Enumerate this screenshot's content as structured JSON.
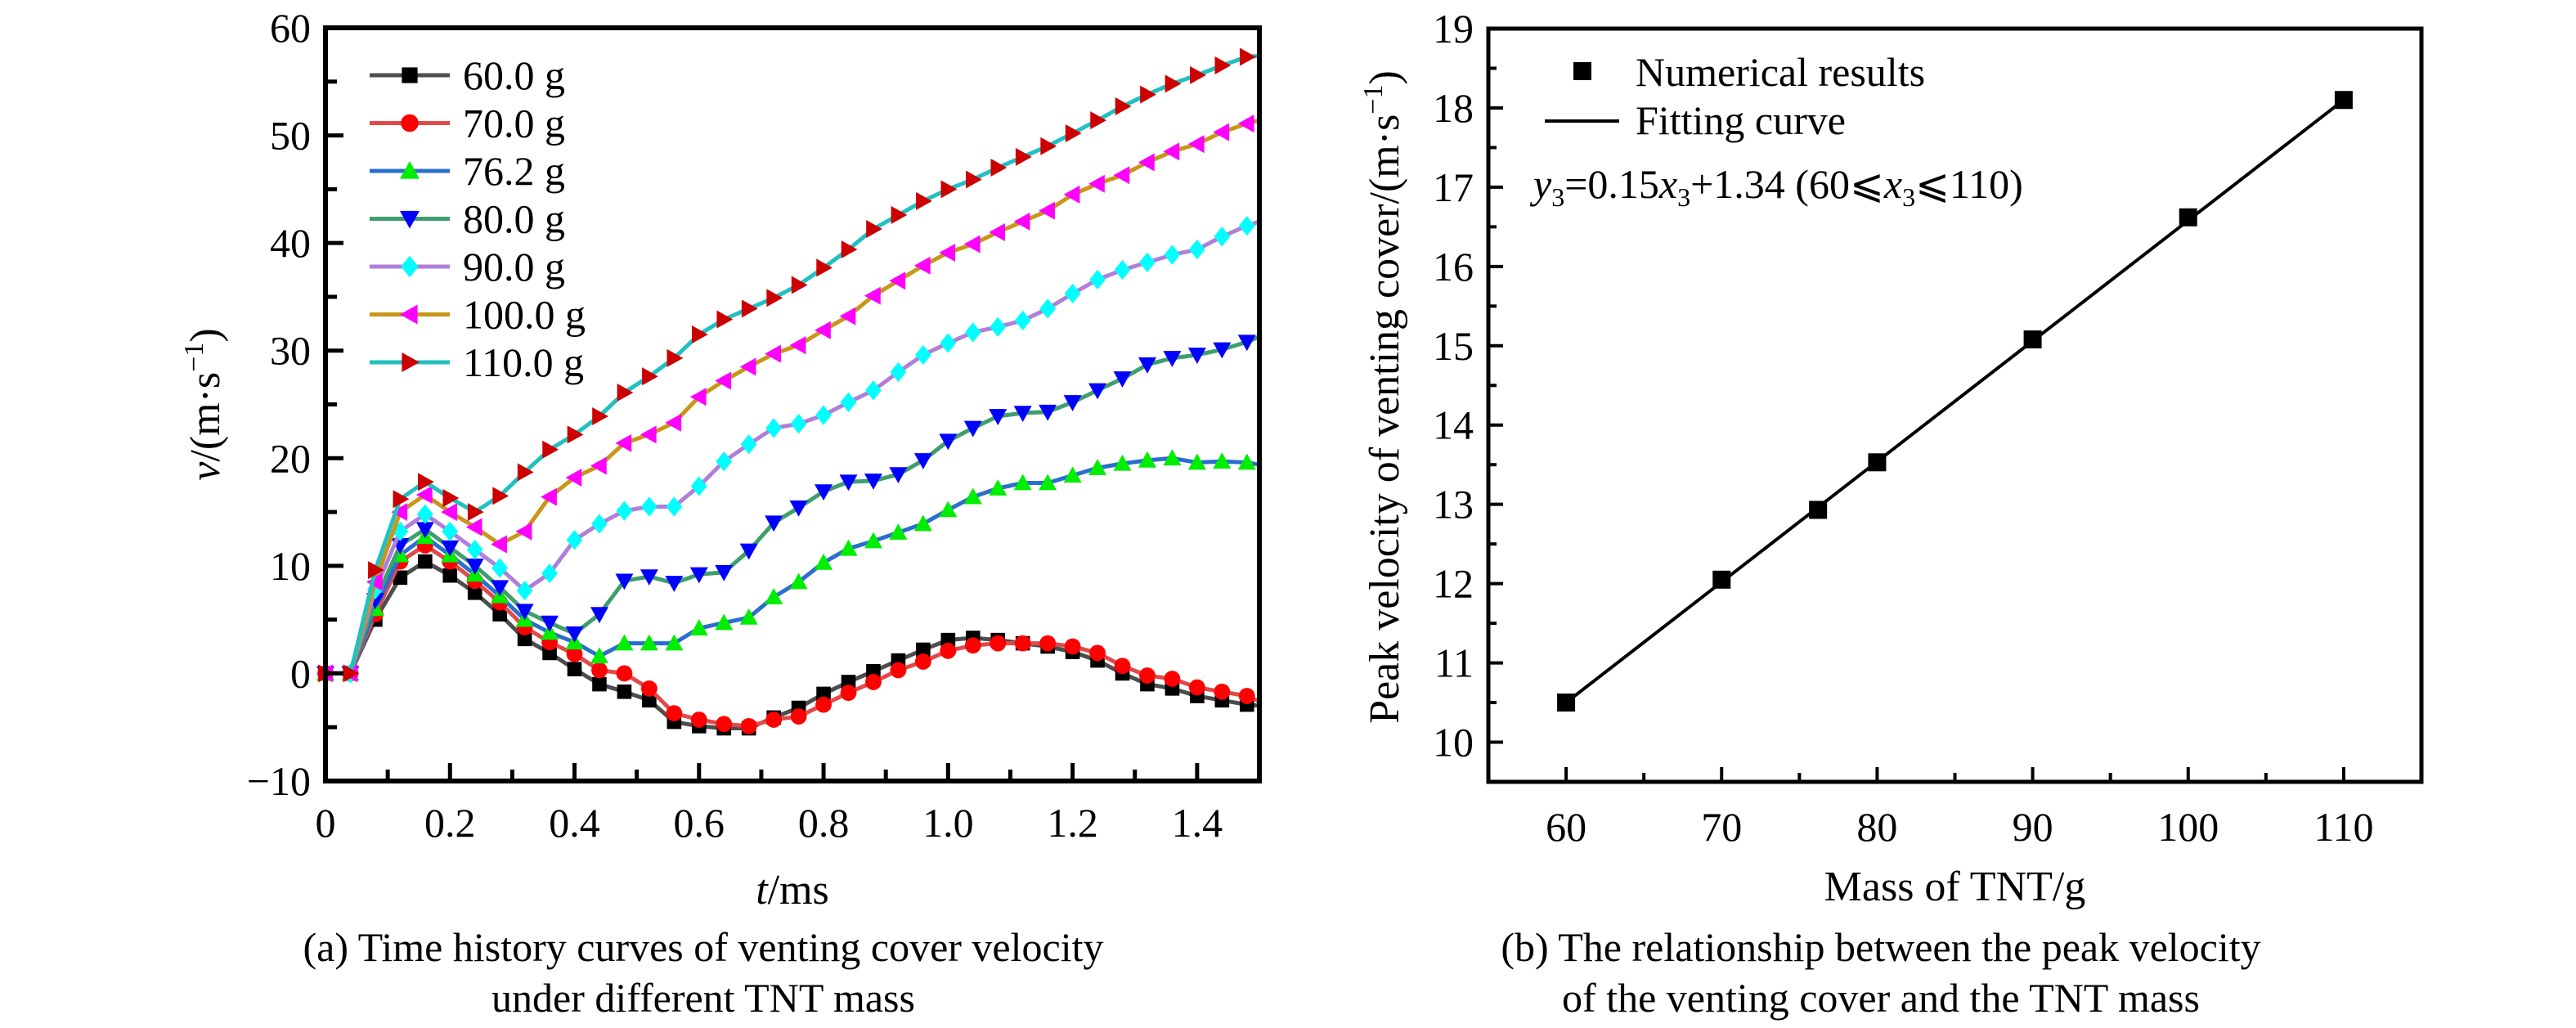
{
  "chart_data": [
    {
      "id": "a",
      "type": "line",
      "title": "",
      "caption_lines": [
        "(a) Time history curves of venting cover velocity",
        "under different TNT mass"
      ],
      "xlabel_italic": "t",
      "xlabel_rest": "/ms",
      "ylabel_italic": "v",
      "ylabel_rest": "/(m·s",
      "ylabel_sup": "−1",
      "ylabel_close": ")",
      "xlim": [
        0,
        1.5
      ],
      "ylim": [
        -10,
        60
      ],
      "xticks": [
        0,
        0.2,
        0.4,
        0.6,
        0.8,
        1.0,
        1.2,
        1.4
      ],
      "xtick_labels": [
        "0",
        "0.2",
        "0.4",
        "0.6",
        "0.8",
        "1.0",
        "1.2",
        "1.4"
      ],
      "yticks": [
        -10,
        0,
        10,
        20,
        30,
        40,
        50,
        60
      ],
      "ytick_labels": [
        "−10",
        "0",
        "10",
        "20",
        "30",
        "40",
        "50",
        "60"
      ],
      "grid": false,
      "legend_position": "top-left",
      "x_start": 0,
      "x_step": 0.04,
      "series": [
        {
          "name": "60.0 g",
          "line_color": "#4d4d4d",
          "marker": "square",
          "marker_color": "#000000",
          "values": [
            0,
            0,
            5.0,
            8.9,
            10.4,
            9.1,
            7.5,
            5.5,
            3.2,
            1.9,
            0.4,
            -1.0,
            -1.7,
            -2.5,
            -4.5,
            -4.9,
            -5.1,
            -5.1,
            -4.1,
            -3.2,
            -1.9,
            -0.8,
            0.2,
            1.2,
            2.2,
            3.1,
            3.3,
            3.1,
            2.8,
            2.5,
            2.0,
            1.2,
            0.0,
            -1.0,
            -1.4,
            -2.1,
            -2.5,
            -2.9
          ],
          "end_value": -3.0
        },
        {
          "name": "70.0 g",
          "line_color": "#e04a4a",
          "marker": "circle",
          "marker_color": "#ff0000",
          "values": [
            0,
            0,
            5.5,
            10.4,
            11.9,
            10.4,
            8.6,
            6.6,
            4.3,
            2.9,
            1.8,
            0.3,
            0.0,
            -1.4,
            -3.7,
            -4.3,
            -4.7,
            -4.9,
            -4.3,
            -4.0,
            -2.9,
            -1.8,
            -0.8,
            0.3,
            1.1,
            2.1,
            2.6,
            2.8,
            2.8,
            2.8,
            2.5,
            1.9,
            0.7,
            -0.2,
            -0.5,
            -1.3,
            -1.7,
            -2.1
          ],
          "end_value": -2.6
        },
        {
          "name": "76.2 g",
          "line_color": "#2a6fcf",
          "marker": "triangle-up",
          "marker_color": "#00ee00",
          "values": [
            0,
            0,
            6.0,
            11.0,
            12.7,
            11.0,
            9.2,
            7.2,
            5.0,
            3.8,
            2.9,
            1.6,
            2.8,
            2.8,
            2.8,
            4.2,
            4.7,
            5.2,
            7.1,
            8.5,
            10.3,
            11.6,
            12.3,
            13.1,
            13.9,
            15.2,
            16.4,
            17.2,
            17.7,
            17.7,
            18.4,
            19.1,
            19.5,
            19.8,
            20.0,
            19.6,
            19.7,
            19.6
          ],
          "end_value": 19.4
        },
        {
          "name": "80.0 g",
          "line_color": "#3f9e6e",
          "marker": "triangle-down",
          "marker_color": "#0000ff",
          "values": [
            0,
            0,
            6.8,
            11.9,
            13.4,
            11.7,
            10.0,
            8.0,
            5.8,
            4.7,
            3.7,
            5.5,
            8.6,
            9.0,
            8.4,
            9.2,
            9.4,
            11.4,
            14.0,
            15.4,
            16.9,
            17.8,
            17.9,
            18.5,
            19.8,
            21.6,
            22.8,
            23.9,
            24.2,
            24.3,
            25.2,
            26.3,
            27.4,
            28.7,
            29.3,
            29.6,
            30.1,
            30.8
          ],
          "end_value": 31.3
        },
        {
          "name": "90.0 g",
          "line_color": "#b07fd8",
          "marker": "diamond",
          "marker_color": "#00ffff",
          "values": [
            0,
            0,
            7.8,
            13.2,
            14.8,
            13.2,
            11.5,
            9.8,
            7.7,
            9.3,
            12.4,
            13.9,
            15.1,
            15.5,
            15.5,
            17.4,
            19.7,
            21.3,
            22.8,
            23.2,
            24.0,
            25.2,
            26.3,
            28.0,
            29.6,
            30.7,
            31.7,
            32.2,
            32.8,
            33.9,
            35.3,
            36.6,
            37.5,
            38.2,
            38.9,
            39.4,
            40.6,
            41.6
          ],
          "end_value": 42.0
        },
        {
          "name": "100.0 g",
          "line_color": "#c9961a",
          "marker": "triangle-left",
          "marker_color": "#ff00ff",
          "values": [
            0,
            0,
            8.5,
            15.0,
            16.6,
            15.0,
            13.6,
            12.0,
            13.2,
            16.4,
            18.2,
            19.3,
            21.4,
            22.2,
            23.3,
            25.7,
            27.2,
            28.5,
            29.7,
            30.5,
            31.9,
            33.2,
            35.1,
            36.5,
            37.9,
            39.1,
            39.9,
            41.0,
            42.0,
            43.0,
            44.5,
            45.5,
            46.3,
            47.5,
            48.5,
            49.2,
            50.3,
            51.1
          ],
          "end_value": 51.4
        },
        {
          "name": "110.0 g",
          "line_color": "#22c0c0",
          "marker": "triangle-right",
          "marker_color": "#cc0000",
          "values": [
            0,
            0,
            9.6,
            16.2,
            17.8,
            16.3,
            15.0,
            16.5,
            18.7,
            20.8,
            22.2,
            23.9,
            26.1,
            27.6,
            29.3,
            31.5,
            32.9,
            33.9,
            34.9,
            36.1,
            37.7,
            39.4,
            41.3,
            42.6,
            43.9,
            45.0,
            45.9,
            47.0,
            48.0,
            49.0,
            50.2,
            51.4,
            52.7,
            53.8,
            54.8,
            55.6,
            56.5,
            57.3
          ],
          "end_value": 57.4
        }
      ]
    },
    {
      "id": "b",
      "type": "scatter",
      "title": "",
      "caption_lines": [
        "(b) The relationship between the peak velocity",
        "of the venting cover and the TNT mass"
      ],
      "xlabel": "Mass of TNT/g",
      "ylabel": "Peak velocity of venting cover/(m·s",
      "ylabel_sup": "−1",
      "ylabel_close": ")",
      "xlim": [
        55,
        115
      ],
      "ylim": [
        9.5,
        19
      ],
      "xticks": [
        60,
        70,
        80,
        90,
        100,
        110
      ],
      "xtick_labels": [
        "60",
        "70",
        "80",
        "90",
        "100",
        "110"
      ],
      "yticks": [
        10,
        11,
        12,
        13,
        14,
        15,
        16,
        17,
        18,
        19
      ],
      "ytick_labels": [
        "10",
        "11",
        "12",
        "13",
        "14",
        "15",
        "16",
        "17",
        "18",
        "19"
      ],
      "grid": false,
      "legend_position": "top-left",
      "legend": [
        "Numerical results",
        "Fitting curve"
      ],
      "points": {
        "x": [
          60,
          70,
          76.2,
          80,
          90,
          100,
          110
        ],
        "y": [
          10.5,
          12.05,
          12.93,
          13.53,
          15.08,
          16.62,
          18.1
        ]
      },
      "fit": {
        "slope": 0.15,
        "intercept": 1.34,
        "x_range": [
          60,
          110
        ],
        "y_at_ends": [
          10.5,
          18.1
        ]
      },
      "equation": {
        "y_var": "y",
        "y_sub": "3",
        "eq_text": "=0.15",
        "x_var": "x",
        "x_sub": "3",
        "rest": "+1.34 (60⩽",
        "x_var2": "x",
        "x_sub2": "3",
        "tail": "⩽110)"
      }
    }
  ]
}
